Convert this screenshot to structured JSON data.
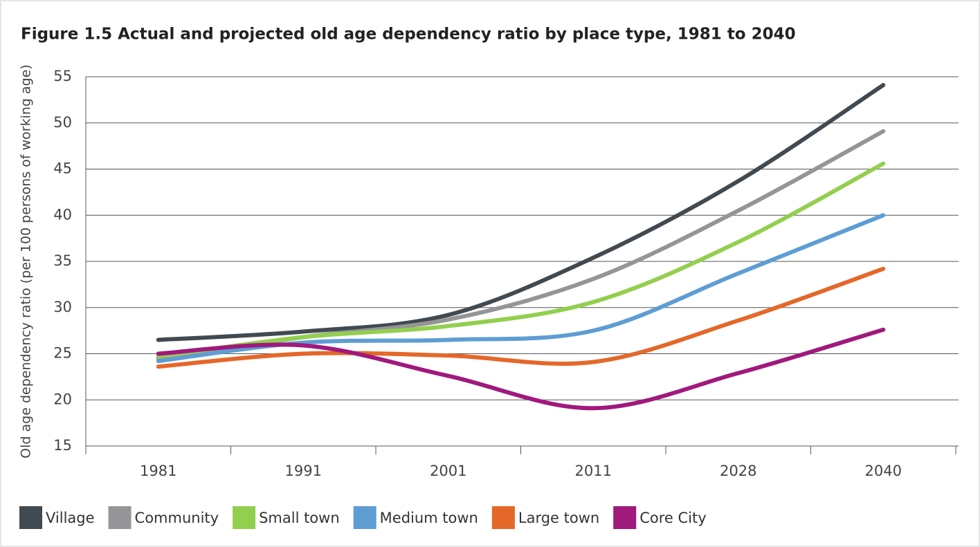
{
  "chart_data": {
    "type": "line",
    "title": "Figure 1.5 Actual and projected old age dependency ratio by place type, 1981 to 2040",
    "y_label": "Old age dependency ratio (per 100 persons of working age)",
    "categories": [
      "1981",
      "1991",
      "2001",
      "2011",
      "2028",
      "2040"
    ],
    "series": [
      {
        "name": "Village",
        "color": "#414a50",
        "values": [
          26.5,
          27.4,
          29.2,
          35.4,
          43.7,
          54.1
        ]
      },
      {
        "name": "Community",
        "color": "#959597",
        "values": [
          24.5,
          26.8,
          28.7,
          33.1,
          40.5,
          49.1
        ]
      },
      {
        "name": "Small town",
        "color": "#93cf4f",
        "values": [
          24.7,
          26.8,
          28.0,
          30.6,
          37.1,
          45.6
        ]
      },
      {
        "name": "Medium town",
        "color": "#5e9dd4",
        "values": [
          24.2,
          26.2,
          26.5,
          27.5,
          33.7,
          40.0
        ]
      },
      {
        "name": "Large town",
        "color": "#e4682a",
        "values": [
          23.6,
          25.0,
          24.8,
          24.1,
          28.6,
          34.2
        ]
      },
      {
        "name": "Core City",
        "color": "#a0197c",
        "values": [
          25.0,
          25.9,
          22.6,
          19.1,
          22.9,
          27.6
        ]
      }
    ],
    "ylim": [
      15,
      55
    ],
    "yticks": [
      15,
      20,
      25,
      30,
      35,
      40,
      45,
      50,
      55
    ],
    "grid": true,
    "legend": "bottom"
  }
}
